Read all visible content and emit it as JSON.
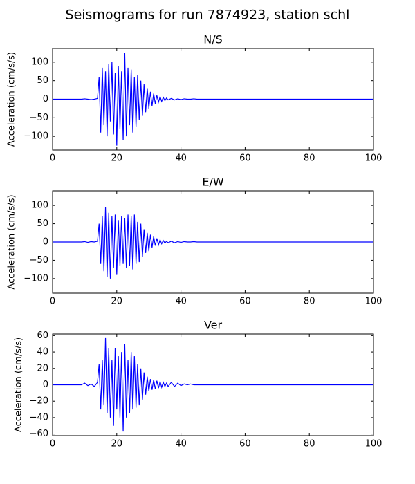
{
  "title": "Seismograms for run 7874923, station schl",
  "chart_data": [
    {
      "type": "line",
      "title": "N/S",
      "ylabel": "Acceleration (cm/s/s)",
      "x": [
        0,
        2,
        4,
        6,
        8,
        9,
        10,
        11,
        12,
        13,
        14,
        14.5,
        15,
        15.5,
        16,
        16.5,
        17,
        17.5,
        18,
        18.5,
        19,
        19.5,
        20,
        20.5,
        21,
        21.5,
        22,
        22.5,
        23,
        23.5,
        24,
        24.5,
        25,
        25.5,
        26,
        26.5,
        27,
        27.5,
        28,
        28.5,
        29,
        29.5,
        30,
        30.5,
        31,
        31.5,
        32,
        32.5,
        33,
        33.5,
        34,
        34.5,
        35,
        35.5,
        36,
        37,
        38,
        39,
        40,
        41,
        42,
        43,
        44,
        45,
        46,
        50,
        60,
        70,
        80,
        90,
        100
      ],
      "series": [
        {
          "name": "N/S",
          "color": "#0000ff",
          "values": [
            0,
            0,
            0,
            0,
            0,
            0,
            1,
            0,
            -1,
            0,
            2,
            60,
            -90,
            85,
            -70,
            75,
            -100,
            95,
            -60,
            100,
            -95,
            70,
            -125,
            90,
            -80,
            75,
            -110,
            125,
            -100,
            85,
            -70,
            80,
            -90,
            60,
            -75,
            65,
            -55,
            50,
            -45,
            40,
            -35,
            30,
            -25,
            20,
            -18,
            15,
            -12,
            10,
            -8,
            7,
            -6,
            5,
            -4,
            3,
            -2,
            2,
            -2,
            1,
            -1,
            1,
            0,
            0,
            1,
            0,
            0,
            0,
            0,
            0,
            0,
            0,
            0
          ]
        }
      ],
      "xlim": [
        0,
        100
      ],
      "ylim": [
        -137,
        137
      ],
      "xticks": [
        0,
        20,
        40,
        60,
        80,
        100
      ],
      "yticks": [
        {
          "value": -100,
          "label": "−100"
        },
        {
          "value": -50,
          "label": "−50"
        },
        0,
        50,
        100
      ]
    },
    {
      "type": "line",
      "title": "E/W",
      "ylabel": "Acceleration (cm/s/s)",
      "x": [
        0,
        2,
        4,
        6,
        8,
        9,
        10,
        11,
        12,
        13,
        14,
        14.5,
        15,
        15.5,
        16,
        16.5,
        17,
        17.5,
        18,
        18.5,
        19,
        19.5,
        20,
        20.5,
        21,
        21.5,
        22,
        22.5,
        23,
        23.5,
        24,
        24.5,
        25,
        25.5,
        26,
        26.5,
        27,
        27.5,
        28,
        28.5,
        29,
        29.5,
        30,
        30.5,
        31,
        31.5,
        32,
        32.5,
        33,
        33.5,
        34,
        34.5,
        35,
        35.5,
        36,
        37,
        38,
        39,
        40,
        41,
        42,
        43,
        44,
        45,
        46,
        50,
        60,
        70,
        80,
        90,
        100
      ],
      "series": [
        {
          "name": "E/W",
          "color": "#0000ff",
          "values": [
            0,
            0,
            0,
            0,
            0,
            0,
            1,
            -1,
            1,
            0,
            2,
            50,
            -60,
            70,
            -80,
            95,
            -95,
            80,
            -100,
            70,
            -70,
            75,
            -90,
            60,
            -65,
            70,
            -60,
            65,
            -70,
            75,
            -65,
            70,
            -75,
            75,
            -60,
            55,
            -55,
            50,
            -40,
            35,
            -30,
            25,
            -25,
            20,
            -15,
            15,
            -10,
            10,
            -8,
            6,
            -5,
            4,
            -3,
            2,
            -2,
            2,
            -2,
            1,
            -1,
            1,
            0,
            0,
            1,
            0,
            0,
            0,
            0,
            0,
            0,
            0,
            0
          ]
        }
      ],
      "xlim": [
        0,
        100
      ],
      "ylim": [
        -140,
        140
      ],
      "xticks": [
        0,
        20,
        40,
        60,
        80,
        100
      ],
      "yticks": [
        {
          "value": -100,
          "label": "−100"
        },
        {
          "value": -50,
          "label": "−50"
        },
        0,
        50,
        100
      ]
    },
    {
      "type": "line",
      "title": "Ver",
      "ylabel": "Acceleration (cm/s/s)",
      "x": [
        0,
        2,
        4,
        6,
        8,
        9,
        10,
        11,
        12,
        13,
        14,
        14.5,
        15,
        15.5,
        16,
        16.5,
        17,
        17.5,
        18,
        18.5,
        19,
        19.5,
        20,
        20.5,
        21,
        21.5,
        22,
        22.5,
        23,
        23.5,
        24,
        24.5,
        25,
        25.5,
        26,
        26.5,
        27,
        27.5,
        28,
        28.5,
        29,
        29.5,
        30,
        30.5,
        31,
        31.5,
        32,
        32.5,
        33,
        33.5,
        34,
        34.5,
        35,
        35.5,
        36,
        37,
        38,
        39,
        40,
        41,
        42,
        43,
        44,
        45,
        46,
        50,
        60,
        70,
        80,
        90,
        100
      ],
      "series": [
        {
          "name": "Ver",
          "color": "#0000ff",
          "values": [
            0,
            0,
            0,
            0,
            0,
            0,
            2,
            -1,
            1,
            -2,
            3,
            25,
            -30,
            30,
            -25,
            57,
            -35,
            45,
            -40,
            30,
            -50,
            45,
            -30,
            35,
            -40,
            40,
            -57,
            50,
            -40,
            30,
            -35,
            40,
            -30,
            35,
            -28,
            25,
            -25,
            20,
            -18,
            15,
            -12,
            10,
            -8,
            7,
            -6,
            6,
            -5,
            5,
            -4,
            4,
            -3,
            3,
            -2,
            2,
            -2,
            3,
            -2,
            2,
            -1,
            1,
            0,
            1,
            0,
            0,
            0,
            0,
            0,
            0,
            0,
            0,
            0
          ]
        }
      ],
      "xlim": [
        0,
        100
      ],
      "ylim": [
        -62,
        62
      ],
      "xticks": [
        0,
        20,
        40,
        60,
        80,
        100
      ],
      "yticks": [
        {
          "value": -60,
          "label": "−60"
        },
        {
          "value": -40,
          "label": "−40"
        },
        {
          "value": -20,
          "label": "−20"
        },
        0,
        20,
        40,
        60
      ]
    }
  ]
}
